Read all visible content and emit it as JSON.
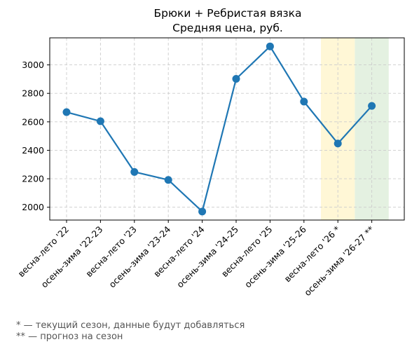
{
  "chart_data": {
    "type": "line",
    "title": [
      "Брюки + Ребристая вязка",
      "Средняя цена, руб."
    ],
    "xlabel": "",
    "ylabel": "",
    "categories": [
      "весна-лето '22",
      "осень-зима '22-23",
      "весна-лето '23",
      "осень-зима '23-24",
      "весна-лето '24",
      "осень-зима '24-25",
      "весна-лето '25",
      "осень-зима '25-26",
      "весна-лето '26 *",
      "осень-зима '26-27 **"
    ],
    "values": [
      2668,
      2604,
      2248,
      2192,
      1970,
      2902,
      3130,
      2742,
      2448,
      2712
    ],
    "ylim": [
      1910,
      3190
    ],
    "yticks": [
      2000,
      2200,
      2400,
      2600,
      2800,
      3000
    ],
    "grid": true,
    "line_color": "#1f77b4",
    "highlight_bands": [
      {
        "category_index": 8,
        "color": "#fff7d6"
      },
      {
        "category_index": 9,
        "color": "#e4f1e1"
      }
    ]
  },
  "footnotes": {
    "current": "* — текущий сезон, данные будут добавляться",
    "forecast": "** — прогноз на сезон"
  }
}
